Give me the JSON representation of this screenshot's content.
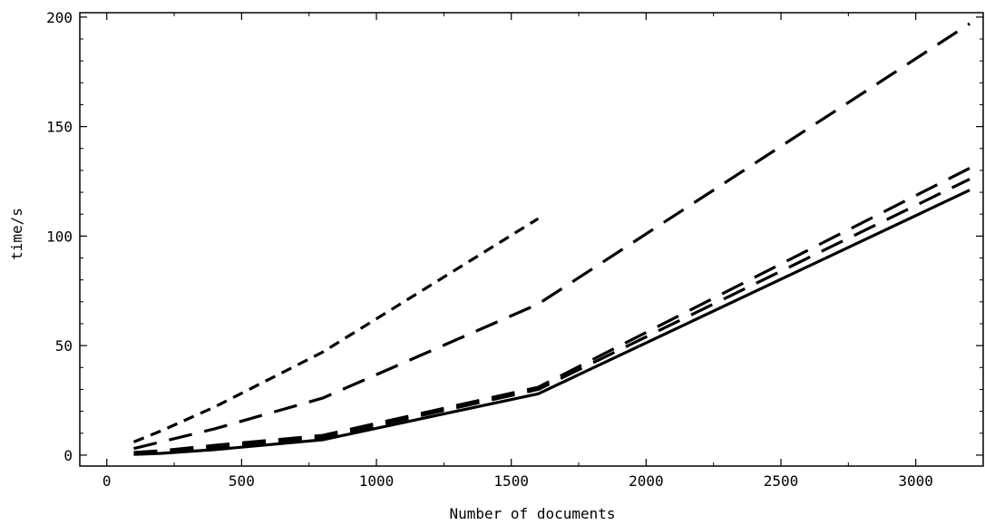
{
  "chart_data": {
    "type": "line",
    "title": "",
    "xlabel": "Number of documents",
    "ylabel": "time/s",
    "xlim": [
      -100,
      3250
    ],
    "ylim": [
      -5,
      202
    ],
    "xticks": [
      0,
      500,
      1000,
      1500,
      2000,
      2500,
      3000
    ],
    "yticks": [
      0,
      50,
      100,
      150,
      200
    ],
    "xtick_labels": [
      "0",
      "500",
      "1000",
      "1500",
      "2000",
      "2500",
      "3000"
    ],
    "ytick_labels": [
      "0",
      "50",
      "100",
      "150",
      "200"
    ],
    "grid": false,
    "legend": "none",
    "line_color": "#000000",
    "series": [
      {
        "style": "solid",
        "x": [
          100,
          200,
          400,
          800,
          1600,
          3200
        ],
        "y": [
          0.3,
          0.8,
          2.5,
          7,
          28,
          121
        ]
      },
      {
        "style": "long-dash",
        "x": [
          100,
          200,
          400,
          800,
          1600,
          3200
        ],
        "y": [
          0.8,
          1.5,
          3.5,
          8,
          30,
          126
        ]
      },
      {
        "style": "long-dash",
        "x": [
          100,
          200,
          400,
          800,
          1600,
          3200
        ],
        "y": [
          1.2,
          2,
          4.5,
          9,
          31,
          131
        ]
      },
      {
        "style": "long-dash",
        "x": [
          100,
          200,
          400,
          800,
          1600,
          3200
        ],
        "y": [
          3,
          6,
          12,
          26,
          69,
          197
        ]
      },
      {
        "style": "short-dash",
        "x": [
          100,
          200,
          400,
          800,
          1600
        ],
        "y": [
          6,
          11,
          22,
          47,
          108
        ]
      }
    ]
  }
}
